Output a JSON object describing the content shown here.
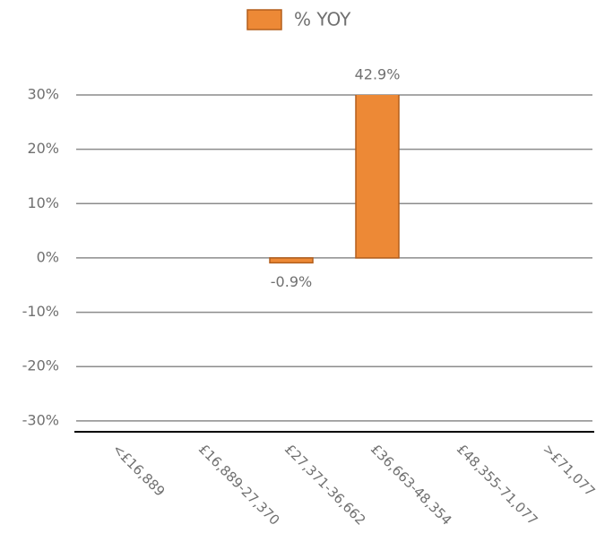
{
  "chart_data": {
    "type": "bar",
    "legend": "% YOY",
    "categories": [
      "<£16,889",
      "£16,889-27,370",
      "£27,371-36,662",
      "£36,663-48,354",
      "£48,355-71,077",
      ">£71,077"
    ],
    "values": [
      null,
      null,
      -0.9,
      42.9,
      null,
      null
    ],
    "value_labels": [
      null,
      null,
      "-0.9%",
      "42.9%",
      null,
      null
    ],
    "color": "#ed8936",
    "ylim": [
      -32,
      30
    ],
    "yticks": [
      {
        "value": -30,
        "label": "-30%"
      },
      {
        "value": -20,
        "label": "-20%"
      },
      {
        "value": -10,
        "label": "-10%"
      },
      {
        "value": 0,
        "label": "0%"
      },
      {
        "value": 10,
        "label": "10%"
      },
      {
        "value": 20,
        "label": "20%"
      },
      {
        "value": 30,
        "label": "30%"
      }
    ],
    "grid": true
  }
}
